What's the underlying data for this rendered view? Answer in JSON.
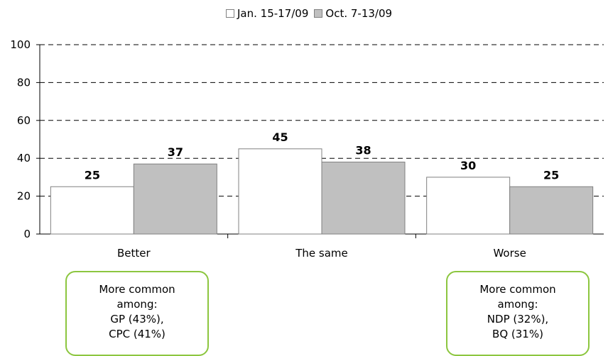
{
  "legend": {
    "series1": "Jan. 15-17/09",
    "series2": "Oct. 7-13/09"
  },
  "colors": {
    "series1": "#ffffff",
    "series2": "#c0c0c0",
    "bar_border": "#808080",
    "note_border": "#8cc63f"
  },
  "chart_data": {
    "type": "bar",
    "categories": [
      "Better",
      "The same",
      "Worse"
    ],
    "series": [
      {
        "name": "Jan. 15-17/09",
        "values": [
          25,
          45,
          30
        ]
      },
      {
        "name": "Oct. 7-13/09",
        "values": [
          37,
          38,
          25
        ]
      }
    ],
    "yticks": [
      "0",
      "20",
      "40",
      "60",
      "80",
      "100"
    ],
    "ylim": [
      0,
      100
    ],
    "grid": true,
    "legend_position": "top-center"
  },
  "notes": {
    "better": {
      "lines": [
        "More common",
        "among:",
        "GP (43%),",
        "CPC (41%)"
      ]
    },
    "worse": {
      "lines": [
        "More common",
        "among:",
        "NDP (32%),",
        "BQ (31%)"
      ]
    }
  }
}
